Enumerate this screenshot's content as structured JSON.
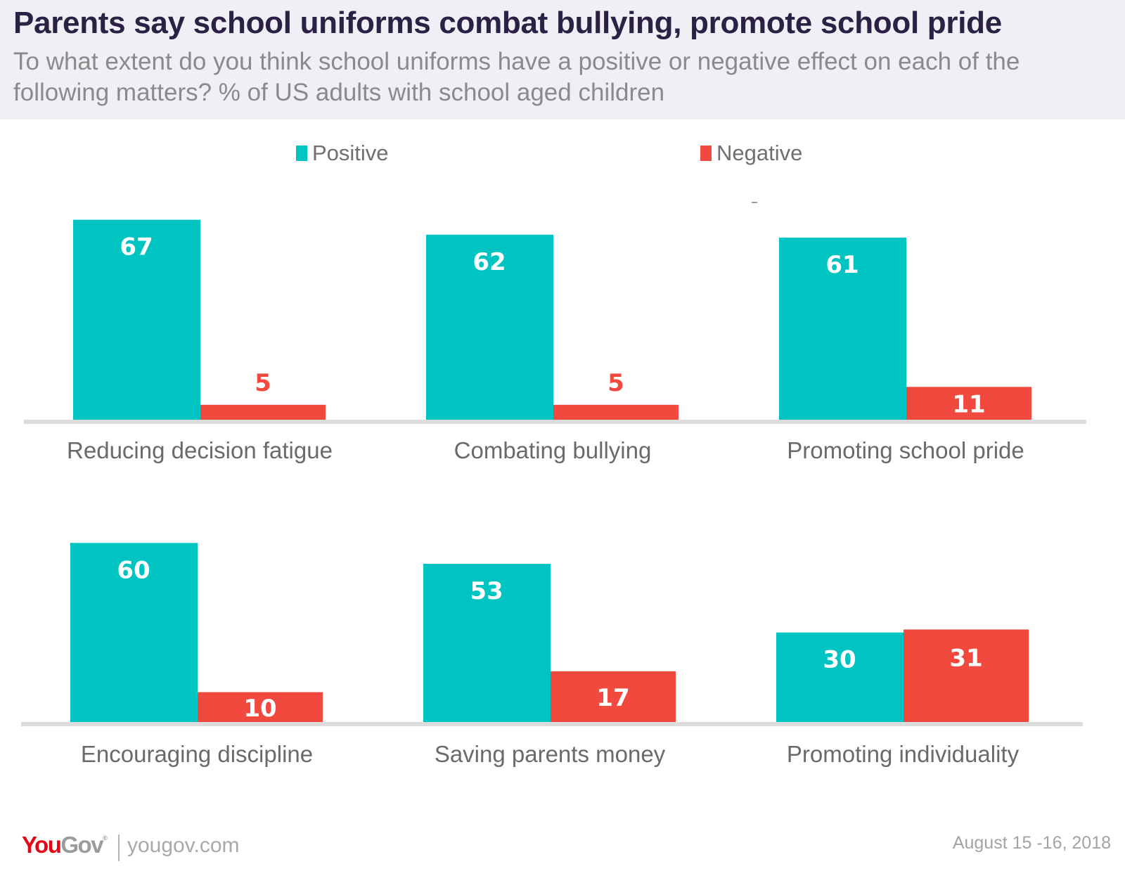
{
  "header": {
    "title": "Parents say school uniforms combat bullying, promote school pride",
    "subtitle": "To what extent do you think school uniforms have a positive or negative effect on each of the following matters? % of US adults with school aged children"
  },
  "colors": {
    "positive": "#00c4c1",
    "negative": "#f2493e",
    "axis": "#dcdcdc",
    "header_bg": "#f0eff5",
    "title": "#2a2145",
    "brand_red": "#e30613"
  },
  "chart_data": {
    "type": "bar",
    "title": "Parents say school uniforms combat bullying, promote school pride",
    "subtitle": "To what extent do you think school uniforms have a positive or negative effect on each of the following matters? % of US adults with school aged children",
    "xlabel": "",
    "ylabel": "",
    "ylim": [
      0,
      70
    ],
    "grid": false,
    "legend": {
      "placement": "top-center",
      "entries": [
        "Positive",
        "Negative"
      ]
    },
    "categories": [
      "Reducing decision fatigue",
      "Combating bullying",
      "Promoting school pride",
      "Encouraging discipline",
      "Saving parents money",
      "Promoting individuality"
    ],
    "series": [
      {
        "name": "Positive",
        "values": [
          67,
          62,
          61,
          60,
          53,
          30
        ]
      },
      {
        "name": "Negative",
        "values": [
          5,
          5,
          11,
          10,
          17,
          31
        ]
      }
    ]
  },
  "legend": {
    "positive_label": "Positive",
    "negative_label": "Negative"
  },
  "footer": {
    "brand_you": "You",
    "brand_gov": "Gov",
    "brand_reg": "®",
    "url": "yougov.com",
    "date": "August 15 -16, 2018"
  }
}
